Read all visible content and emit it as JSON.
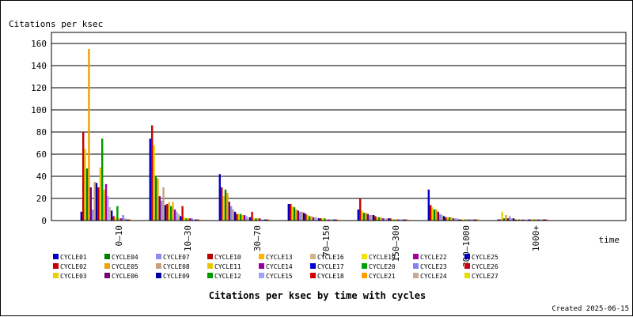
{
  "page": {
    "background": "#ffffff",
    "created_label": "Created 2025-06-15"
  },
  "chart_data": {
    "type": "bar",
    "title": "Citations per ksec by time with cycles",
    "ylabel": "Citations per ksec",
    "xlabel": "time",
    "ylim": [
      0,
      170
    ],
    "yticks": [
      0,
      20,
      40,
      60,
      80,
      100,
      120,
      140,
      160
    ],
    "grid": true,
    "legend_position": "bottom",
    "categories": [
      "0–10",
      "10–30",
      "30–70",
      "70–150",
      "150–300",
      "300–1000",
      "1000+"
    ],
    "series": [
      {
        "name": "CYCLE01",
        "color": "#0000c8",
        "values": [
          8,
          74,
          42,
          15,
          10,
          28,
          1
        ]
      },
      {
        "name": "CYCLE02",
        "color": "#c80000",
        "values": [
          80,
          86,
          30,
          15,
          20,
          14,
          1
        ]
      },
      {
        "name": "CYCLE03",
        "color": "#e6d200",
        "values": [
          65,
          68,
          22,
          13,
          9,
          12,
          8
        ]
      },
      {
        "name": "CYCLE04",
        "color": "#008200",
        "values": [
          47,
          40,
          28,
          12,
          7,
          10,
          2
        ]
      },
      {
        "name": "CYCLE05",
        "color": "#f0a000",
        "values": [
          155,
          38,
          25,
          10,
          7,
          10,
          5
        ]
      },
      {
        "name": "CYCLE06",
        "color": "#780078",
        "values": [
          30,
          22,
          17,
          9,
          6,
          8,
          2
        ]
      },
      {
        "name": "CYCLE07",
        "color": "#8c8cf0",
        "values": [
          10,
          18,
          13,
          8,
          5,
          6,
          4
        ]
      },
      {
        "name": "CYCLE08",
        "color": "#c8a080",
        "values": [
          35,
          30,
          10,
          8,
          5,
          5,
          2
        ]
      },
      {
        "name": "CYCLE09",
        "color": "#0000a0",
        "values": [
          34,
          14,
          8,
          7,
          5,
          4,
          2
        ]
      },
      {
        "name": "CYCLE10",
        "color": "#b40000",
        "values": [
          30,
          15,
          6,
          6,
          4,
          3,
          1
        ]
      },
      {
        "name": "CYCLE11",
        "color": "#e6c800",
        "values": [
          48,
          17,
          6,
          5,
          3,
          3,
          1
        ]
      },
      {
        "name": "CYCLE12",
        "color": "#009600",
        "values": [
          74,
          13,
          6,
          4,
          3,
          3,
          1
        ]
      },
      {
        "name": "CYCLE13",
        "color": "#ffb400",
        "values": [
          28,
          17,
          5,
          4,
          3,
          3,
          1
        ]
      },
      {
        "name": "CYCLE14",
        "color": "#9600a0",
        "values": [
          33,
          10,
          5,
          3,
          2,
          2,
          1
        ]
      },
      {
        "name": "CYCLE15",
        "color": "#a0a0ff",
        "values": [
          22,
          8,
          4,
          3,
          2,
          2,
          1
        ]
      },
      {
        "name": "CYCLE16",
        "color": "#d4b48c",
        "values": [
          12,
          6,
          3,
          3,
          2,
          2,
          1
        ]
      },
      {
        "name": "CYCLE17",
        "color": "#0000d2",
        "values": [
          9,
          4,
          3,
          2,
          2,
          1,
          1
        ]
      },
      {
        "name": "CYCLE18",
        "color": "#d20000",
        "values": [
          4,
          13,
          8,
          2,
          2,
          1,
          1
        ]
      },
      {
        "name": "CYCLE19",
        "color": "#f0e600",
        "values": [
          3,
          3,
          2,
          2,
          1,
          1,
          1
        ]
      },
      {
        "name": "CYCLE20",
        "color": "#00a000",
        "values": [
          13,
          2,
          2,
          2,
          1,
          1,
          1
        ]
      },
      {
        "name": "CYCLE21",
        "color": "#ffa000",
        "values": [
          2,
          2,
          2,
          1,
          1,
          1,
          1
        ]
      },
      {
        "name": "CYCLE22",
        "color": "#a000a0",
        "values": [
          2,
          2,
          2,
          1,
          1,
          1,
          1
        ]
      },
      {
        "name": "CYCLE23",
        "color": "#8282f0",
        "values": [
          5,
          2,
          1,
          1,
          1,
          1,
          1
        ]
      },
      {
        "name": "CYCLE24",
        "color": "#c8aa96",
        "values": [
          2,
          1,
          1,
          1,
          1,
          1,
          1
        ]
      },
      {
        "name": "CYCLE25",
        "color": "#0000be",
        "values": [
          1,
          1,
          1,
          1,
          1,
          1,
          1
        ]
      },
      {
        "name": "CYCLE26",
        "color": "#c80014",
        "values": [
          1,
          1,
          1,
          1,
          1,
          1,
          1
        ]
      },
      {
        "name": "CYCLE27",
        "color": "#e6dc00",
        "values": [
          1,
          1,
          1,
          1,
          1,
          1,
          1
        ]
      }
    ]
  }
}
